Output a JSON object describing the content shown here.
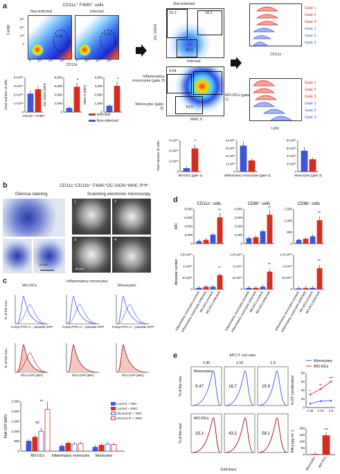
{
  "colors": {
    "red": "#d62d20",
    "blue": "#3e55d4",
    "darkred": "#8a1010",
    "navy": "#1d2f8c"
  },
  "a": {
    "label": "a",
    "cd11_title": "CD11c⁺ F4/80⁺ cells",
    "noninfected": "Non-infected",
    "infected": "Infected",
    "gate_a": "1.91",
    "gate_b": "2.63",
    "f480": "F4/80",
    "cd11b": "CD11b",
    "dcsign_title": "Non-infected",
    "infected2": "Infected",
    "dcsign_axis": "DC-SIGN",
    "mhc_axis": "MHC II",
    "q1": "19.2",
    "q2": "18.2",
    "q3": "25.5",
    "q4": "4.54",
    "q5": "74.2",
    "q6": "10.5",
    "inflamm": "Inflammatory monocytes (gate 2)",
    "modc": "MO-DCs (gate 1)",
    "mono": "Monocytes (gate 3)",
    "hist1_axis": "CD11c",
    "hist2_axis": "Ly6c",
    "gates": [
      "Gate 1",
      "Gate 2",
      "Gate 3",
      "Gate 1",
      "Gate 2",
      "Gate 3"
    ],
    "bar1": {
      "ylabel": "Total number of cells",
      "cat": "CD11b⁺ F4/80⁺",
      "ticks": [
        "4×10⁰⁶",
        "3×10⁰⁶",
        "2×10⁰⁶",
        "1×10⁰⁶",
        "0"
      ],
      "values": [
        2.1,
        2.6
      ],
      "ymax": 4
    },
    "bar2": {
      "ylabel": "DC-SIGN (MFI)",
      "cat": "DC-SIGN",
      "ticks": [
        "8,000",
        "6,000",
        "4,000",
        "2,000",
        "0"
      ],
      "values": [
        900,
        5800
      ],
      "ymax": 8000,
      "star": "*"
    },
    "bar3": {
      "ylabel": "MHC-II (MFI)",
      "cat": "MHC-II",
      "ticks": [
        "4,000",
        "3,000",
        "2,000",
        "1,000",
        "0"
      ],
      "values": [
        700,
        3000
      ],
      "ymax": 4000,
      "star": "*"
    },
    "legend": [
      "Infected",
      "Non-infected"
    ],
    "bar4": {
      "ylabel": "Total number of cells",
      "ticks": [
        "3×10⁰⁶",
        "2×10⁰⁶",
        "1×10⁰⁶",
        "0"
      ],
      "values": [
        0.3,
        2.2
      ],
      "ymax": 3,
      "cat": "MO-DCs (gate 1)",
      "star": "*"
    },
    "bar5": {
      "ticks": [
        "4×10⁰⁵",
        "3×10⁰⁵",
        "2×10⁰⁵",
        "1×10⁰⁵",
        "0"
      ],
      "values": [
        3.3,
        1.4
      ],
      "ymax": 4,
      "cat": "Inflammatory monocytes (gate 2)"
    },
    "bar6": {
      "ticks": [
        "8×10⁰⁵",
        "6×10⁰⁵",
        "4×10⁰⁵",
        "2×10⁰⁵",
        "0"
      ],
      "values": [
        5.3,
        3.1
      ],
      "ymax": 8,
      "cat": "Monocytes (gate 3)"
    }
  },
  "b": {
    "label": "b",
    "title": "CD11c⁺CD11b⁺ F4/80⁺DC-SIGN⁺MHC IIʰⁱᵍʰ",
    "giemsa": "Giemsa staining",
    "sem": "Scanning electronic microscopy",
    "scale1": "10 μm",
    "scale2": "10 μm",
    "nums": [
      "1",
      "2",
      "3",
      "4"
    ]
  },
  "c": {
    "label": "c",
    "cols": [
      "MO-DCs",
      "Inflammatory monocytes",
      "Monocytes"
    ],
    "ylab": "% of the max",
    "xlab1": "Comp-FITC-A :: parasite GFP",
    "xlab2": "PbA-GFP (MFI)",
    "bar_ylabel": "PbA-GFP (MFI)",
    "ticks": [
      "2,500",
      "2,000",
      "1,500",
      "1,000",
      "500",
      "0"
    ],
    "ymax": 2500,
    "groups": [
      {
        "name": "MO-DCs",
        "values": [
          500,
          700,
          1000,
          2100
        ]
      },
      {
        "name": "Inflammatory monocytes",
        "values": [
          250,
          400,
          350,
          380
        ]
      },
      {
        "name": "Monocytes",
        "values": [
          200,
          300,
          350,
          330
        ]
      }
    ],
    "ns": "ns",
    "star": "**",
    "legend": [
      "Control + RBC",
      "Control + iRBC",
      "Infected 6ʰ + RBC",
      "Infected 6ʰ + iRBC"
    ]
  },
  "d": {
    "label": "d",
    "titles": [
      "CD11c⁺ cells",
      "CD80⁺ cells",
      "CD86⁺ cells"
    ],
    "mfi": "MFI",
    "abs": "Absolute number",
    "ticks_top": [
      [
        "8,000",
        "6,000",
        "4,000",
        "2,000",
        "0"
      ],
      [
        "4,000",
        "3,000",
        "2,000",
        "1,000",
        "0"
      ],
      [
        "1,500",
        "1,000",
        "500",
        "0"
      ]
    ],
    "ticks_bot": [
      [
        "1.5×10⁰⁶",
        "1×10⁰⁶",
        "5×10⁰⁵",
        "0"
      ],
      [
        "1.5×10⁰⁶",
        "1×10⁰⁶",
        "5×10⁰⁵",
        "0"
      ],
      [
        "1.5×10⁰⁵",
        "1×10⁰⁵",
        "5×10⁰⁴",
        "0"
      ]
    ],
    "star": "**",
    "cats": [
      "Inflammatory monocytes (control)",
      "Inflammatory monocytes (infected)",
      "MO-DCs (control)",
      "MO-DCs (infected)"
    ]
  },
  "e": {
    "label": "e",
    "ratio": "APC/T cell ratio",
    "ratios": [
      "1:30",
      "1:10",
      "1:3"
    ],
    "mono": "Monocytes",
    "modc": "MO-DCs",
    "ylab": "% of the max",
    "xlab": "Cell trace",
    "mono_vals": [
      "9.47",
      "16.7",
      "15.9"
    ],
    "modc_vals": [
      "33.1",
      "43.2",
      "58.1"
    ],
    "legend": [
      "Monocytes",
      "MO-DCs"
    ],
    "line_ylabel": "% OT-I proliferation",
    "line_ticks": [
      "80",
      "60",
      "40",
      "20",
      "0"
    ],
    "line_x": [
      "1:30",
      "1:10",
      "1:3"
    ],
    "line_mono": [
      9,
      15,
      16
    ],
    "line_modc": [
      30,
      43,
      60
    ],
    "line_ymax": 80,
    "ifn_ylabel": "IFN-γ (pg ml⁻¹)",
    "ifn_ticks": [
      "200",
      "150",
      "100",
      "50",
      "0"
    ],
    "ifn_cats": [
      "Monocytes",
      "MO-DCs"
    ],
    "ifn_vals": [
      3,
      145
    ],
    "ifn_ymax": 200,
    "stars": [
      "*",
      "**",
      "***",
      "***"
    ]
  }
}
